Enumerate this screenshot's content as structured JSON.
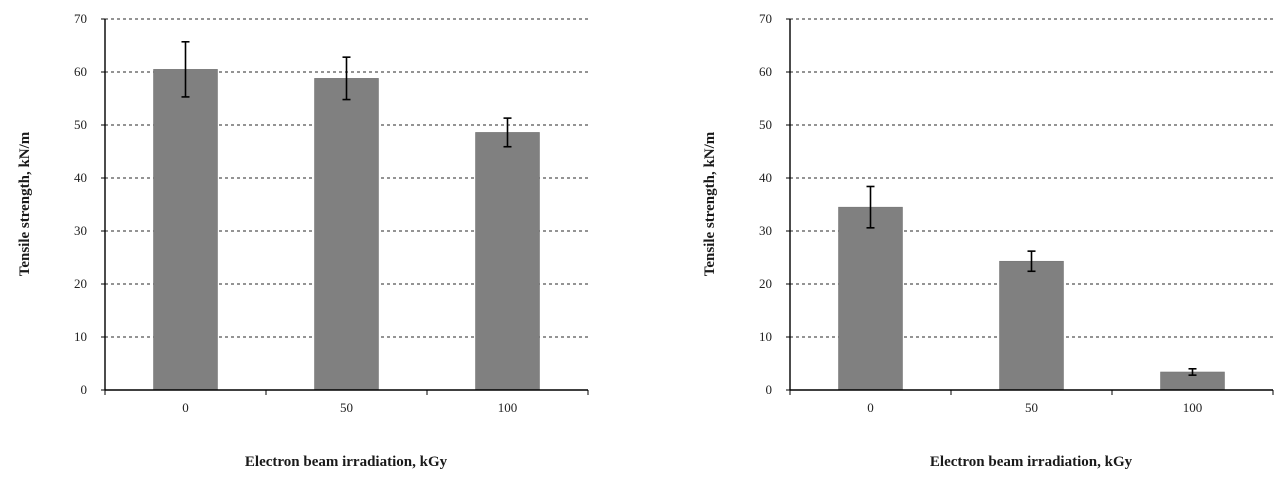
{
  "colors": {
    "bar": "#808080",
    "bar_edge": "#6e6e6e",
    "axis": "#000000",
    "grid": "#555555",
    "error_bar": "#000000"
  },
  "chart_data": [
    {
      "type": "bar",
      "categories": [
        "0",
        "50",
        "100"
      ],
      "values": [
        60.5,
        58.8,
        48.6
      ],
      "error": [
        5.2,
        4.0,
        2.7
      ],
      "xlabel": "Electron beam irradiation, kGy",
      "ylabel": "Tensile strength, kN/m",
      "ylim": [
        0,
        70
      ],
      "yticks": [
        "0",
        "10",
        "20",
        "30",
        "40",
        "50",
        "60",
        "70"
      ],
      "grid": "horizontal dashed",
      "legend": "none"
    },
    {
      "type": "bar",
      "categories": [
        "0",
        "50",
        "100"
      ],
      "values": [
        34.5,
        24.3,
        3.4
      ],
      "error": [
        3.9,
        1.9,
        0.6
      ],
      "xlabel": "Electron beam irradiation, kGy",
      "ylabel": "Tensile strength, kN/m",
      "ylim": [
        0,
        70
      ],
      "yticks": [
        "0",
        "10",
        "20",
        "30",
        "40",
        "50",
        "60",
        "70"
      ],
      "grid": "horizontal dashed",
      "legend": "none"
    }
  ]
}
